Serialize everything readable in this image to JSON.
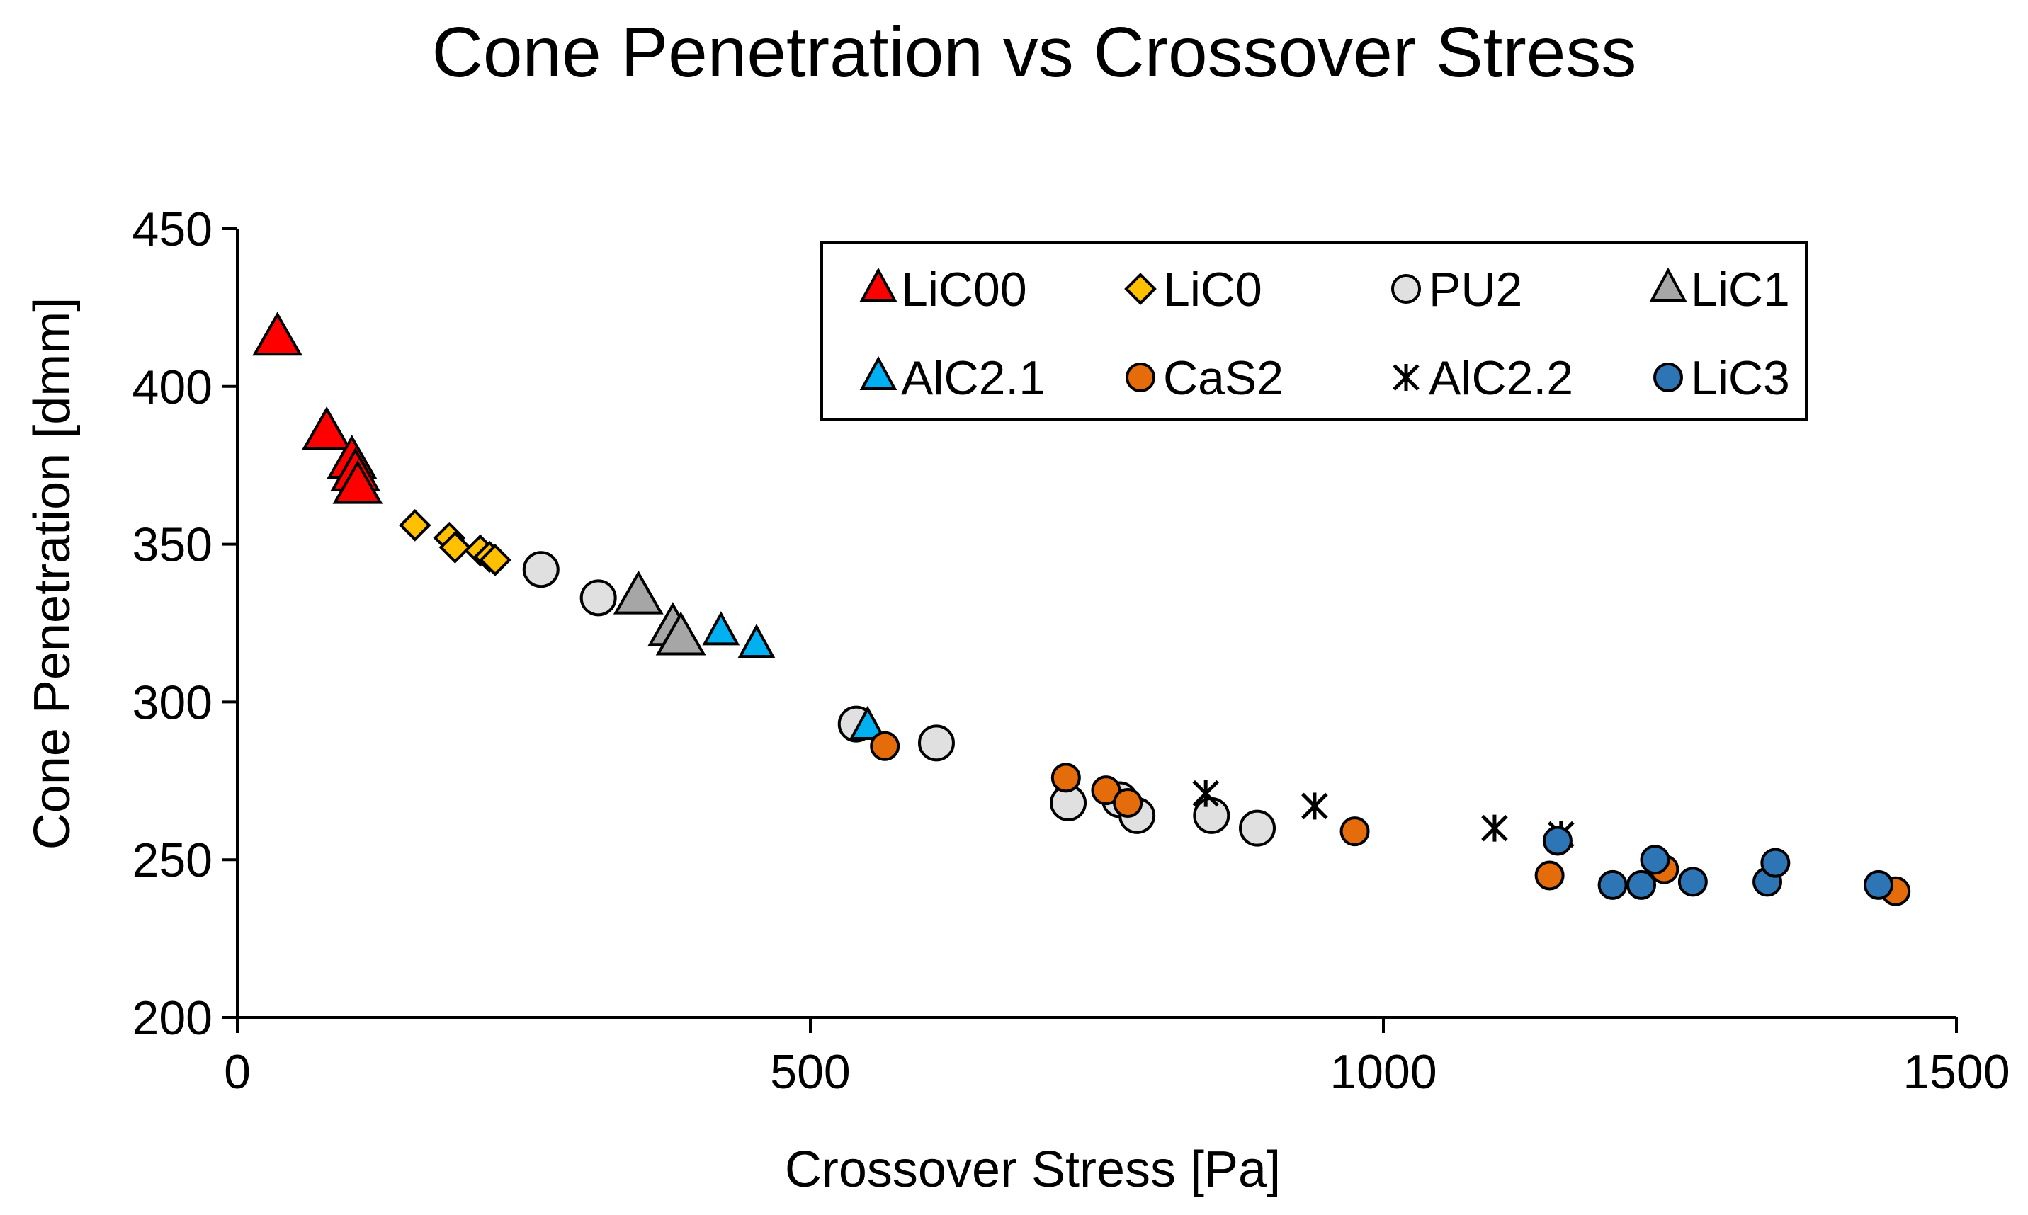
{
  "chart_data": {
    "type": "scatter",
    "title": "Cone Penetration vs Crossover Stress",
    "xlabel": "Crossover Stress [Pa]",
    "ylabel": "Cone Penetration [dmm]",
    "xlim": [
      0,
      1500
    ],
    "ylim": [
      200,
      450
    ],
    "xticks": [
      "0",
      "500",
      "1000",
      "1500"
    ],
    "yticks": [
      "200",
      "250",
      "300",
      "350",
      "400",
      "450"
    ],
    "grid": false,
    "legend": {
      "placement": "top-right",
      "columns": 4
    },
    "series": [
      {
        "name": "LiC00",
        "marker": "triangle",
        "color": "#ff0000",
        "size": "large",
        "x": [
          35,
          78,
          100,
          103,
          105
        ],
        "y": [
          415,
          385,
          376,
          372,
          368
        ]
      },
      {
        "name": "LiC0",
        "marker": "diamond",
        "color": "#ffc000",
        "size": "normal",
        "x": [
          155,
          185,
          190,
          212,
          220,
          225
        ],
        "y": [
          356,
          352,
          349,
          348,
          346,
          345
        ]
      },
      {
        "name": "PU2",
        "marker": "circle",
        "color": "#e0e0e0",
        "size": "large",
        "x": [
          265,
          315,
          540,
          610,
          725,
          770,
          785,
          850,
          890
        ],
        "y": [
          342,
          333,
          293,
          287,
          268,
          269,
          264,
          264,
          260
        ]
      },
      {
        "name": "LiC1",
        "marker": "triangle",
        "color": "#a6a6a6",
        "size": "large",
        "x": [
          350,
          380,
          387
        ],
        "y": [
          333,
          323,
          320
        ]
      },
      {
        "name": "AlC2.1",
        "marker": "triangle",
        "color": "#00b0f0",
        "size": "normal",
        "x": [
          422,
          453,
          550
        ],
        "y": [
          322,
          318,
          292
        ]
      },
      {
        "name": "CaS2",
        "marker": "circle",
        "color": "#e46c0a",
        "size": "normal",
        "x": [
          565,
          723,
          758,
          777,
          975,
          1145,
          1245,
          1447
        ],
        "y": [
          286,
          276,
          272,
          268,
          259,
          245,
          247,
          240
        ]
      },
      {
        "name": "AlC2.2",
        "marker": "star",
        "color": "#000000",
        "size": "normal",
        "x": [
          845,
          940,
          1097,
          1155
        ],
        "y": [
          271,
          267,
          260,
          258
        ]
      },
      {
        "name": "LiC3",
        "marker": "circle",
        "color": "#2e75b6",
        "size": "normal",
        "x": [
          1152,
          1200,
          1225,
          1237,
          1270,
          1335,
          1342,
          1432
        ],
        "y": [
          256,
          242,
          242,
          250,
          243,
          243,
          249,
          242
        ]
      }
    ]
  }
}
